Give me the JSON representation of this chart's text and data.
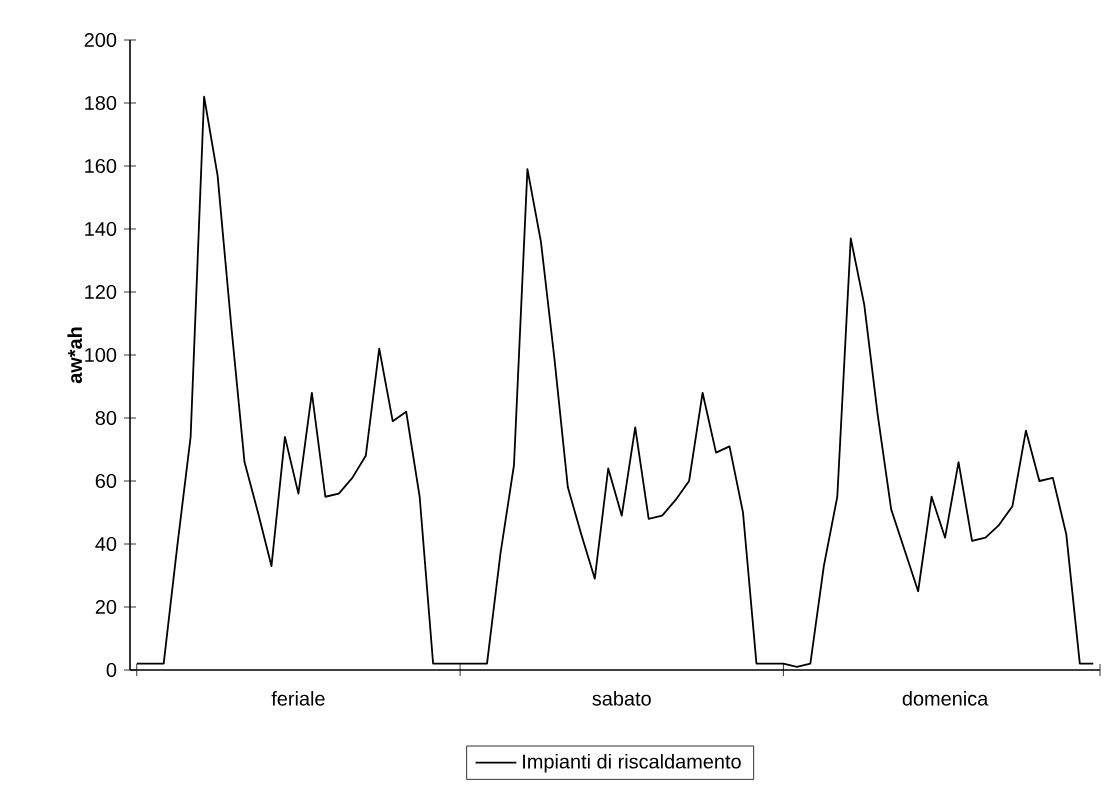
{
  "chart_data": {
    "type": "line",
    "ylabel": "aw*ah",
    "categories": [
      null,
      null,
      null,
      null,
      null,
      null,
      null,
      null,
      null,
      null,
      null,
      null,
      "feriale",
      null,
      null,
      null,
      null,
      null,
      null,
      null,
      null,
      null,
      null,
      null,
      null,
      null,
      null,
      null,
      null,
      null,
      null,
      null,
      null,
      null,
      null,
      null,
      "sabato",
      null,
      null,
      null,
      null,
      null,
      null,
      null,
      null,
      null,
      null,
      null,
      null,
      null,
      null,
      null,
      null,
      null,
      null,
      null,
      null,
      null,
      null,
      null,
      "domenica",
      null,
      null,
      null,
      null,
      null,
      null,
      null,
      null,
      null,
      null,
      null
    ],
    "series": [
      {
        "name": "Impianti di riscaldamento",
        "color": "#000000",
        "values": [
          2,
          2,
          2,
          39,
          74,
          182,
          157,
          110,
          66,
          50,
          33,
          74,
          56,
          88,
          55,
          56,
          61,
          68,
          102,
          79,
          82,
          55,
          2,
          2,
          2,
          2,
          2,
          37,
          65,
          159,
          136,
          99,
          58,
          43,
          29,
          64,
          49,
          77,
          48,
          49,
          54,
          60,
          88,
          69,
          71,
          50,
          2,
          2,
          2,
          1,
          2,
          33,
          55,
          137,
          116,
          81,
          51,
          38,
          25,
          55,
          42,
          66,
          41,
          42,
          46,
          52,
          76,
          60,
          61,
          43,
          2,
          2
        ]
      }
    ],
    "ylim": [
      0,
      200
    ],
    "yticks": [
      0,
      20,
      40,
      60,
      80,
      100,
      120,
      140,
      160,
      180,
      200
    ],
    "grid": false,
    "legend": "bottom",
    "marker": "none",
    "line_style": "solid"
  }
}
